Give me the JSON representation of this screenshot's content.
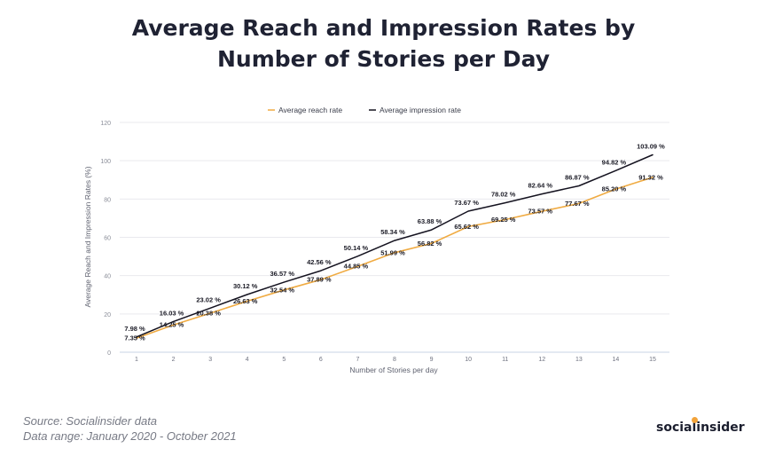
{
  "title": {
    "line1": "Average Reach and Impression Rates by",
    "line2": "Number of Stories per Day"
  },
  "source": {
    "line1": "Source: Socialinsider data",
    "line2": "Data range: January 2020 - October 2021"
  },
  "brand": {
    "name": "socialinsider",
    "accent": "#f2a33a"
  },
  "colors": {
    "reach": "#f0ab42",
    "impression": "#14121f"
  },
  "chart_data": {
    "type": "line",
    "title": "Average Reach and Impression Rates by Number of Stories per Day",
    "xlabel": "Number of Stories per day",
    "ylabel": "Average Reach and Impression Rates (%)",
    "x": [
      1,
      2,
      3,
      4,
      5,
      6,
      7,
      8,
      9,
      10,
      11,
      12,
      13,
      14,
      15
    ],
    "ylim": [
      0,
      120
    ],
    "yticks": [
      0,
      20,
      40,
      60,
      80,
      100,
      120
    ],
    "grid": true,
    "legend_position": "top",
    "series": [
      {
        "name": "Average reach rate",
        "values": [
          7.35,
          14.25,
          20.38,
          26.63,
          32.54,
          37.89,
          44.85,
          51.99,
          56.82,
          65.62,
          69.25,
          73.57,
          77.67,
          85.2,
          91.32
        ],
        "labels": [
          "7.35 %",
          "14.25 %",
          "20.38 %",
          "26.63 %",
          "32.54 %",
          "37.89 %",
          "44.85 %",
          "51.99 %",
          "56.82 %",
          "65.62 %",
          "69.25 %",
          "73.57 %",
          "77.67 %",
          "85.20 %",
          "91.32 %"
        ]
      },
      {
        "name": "Average impression rate",
        "values": [
          7.98,
          16.03,
          23.02,
          30.12,
          36.57,
          42.56,
          50.14,
          58.34,
          63.88,
          73.67,
          78.02,
          82.64,
          86.87,
          94.82,
          103.09
        ],
        "labels": [
          "7.98 %",
          "16.03 %",
          "23.02 %",
          "30.12 %",
          "36.57 %",
          "42.56 %",
          "50.14 %",
          "58.34 %",
          "63.88 %",
          "73.67 %",
          "78.02 %",
          "82.64 %",
          "86.87 %",
          "94.82 %",
          "103.09 %"
        ]
      }
    ]
  }
}
